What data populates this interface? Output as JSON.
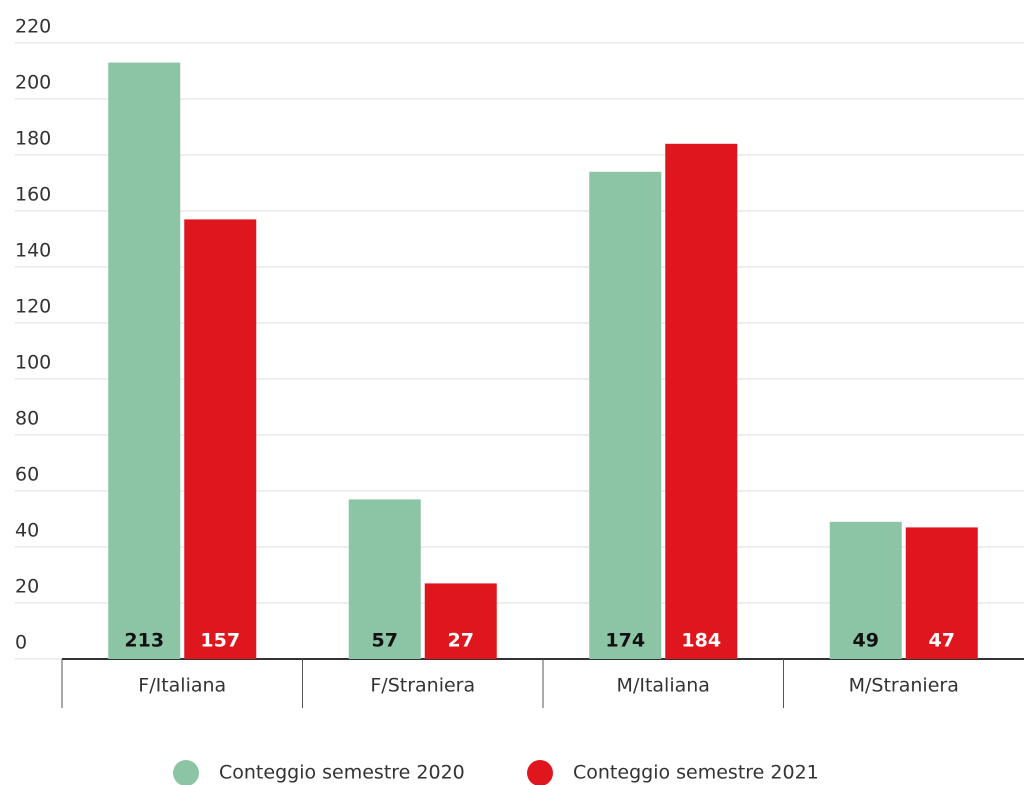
{
  "chart_data": {
    "type": "bar",
    "categories": [
      "F/Italiana",
      "F/Straniera",
      "M/Italiana",
      "M/Straniera"
    ],
    "series": [
      {
        "name": "Conteggio semestre 2020",
        "color": "#8cc5a5",
        "values": [
          213,
          57,
          174,
          49
        ]
      },
      {
        "name": "Conteggio semestre 2021",
        "color": "#e0161e",
        "values": [
          157,
          27,
          184,
          47
        ]
      }
    ],
    "ylim": [
      0,
      220
    ],
    "yticks": [
      0,
      20,
      40,
      60,
      80,
      100,
      120,
      140,
      160,
      180,
      200,
      220
    ],
    "grid": true,
    "legend": "bottom"
  }
}
